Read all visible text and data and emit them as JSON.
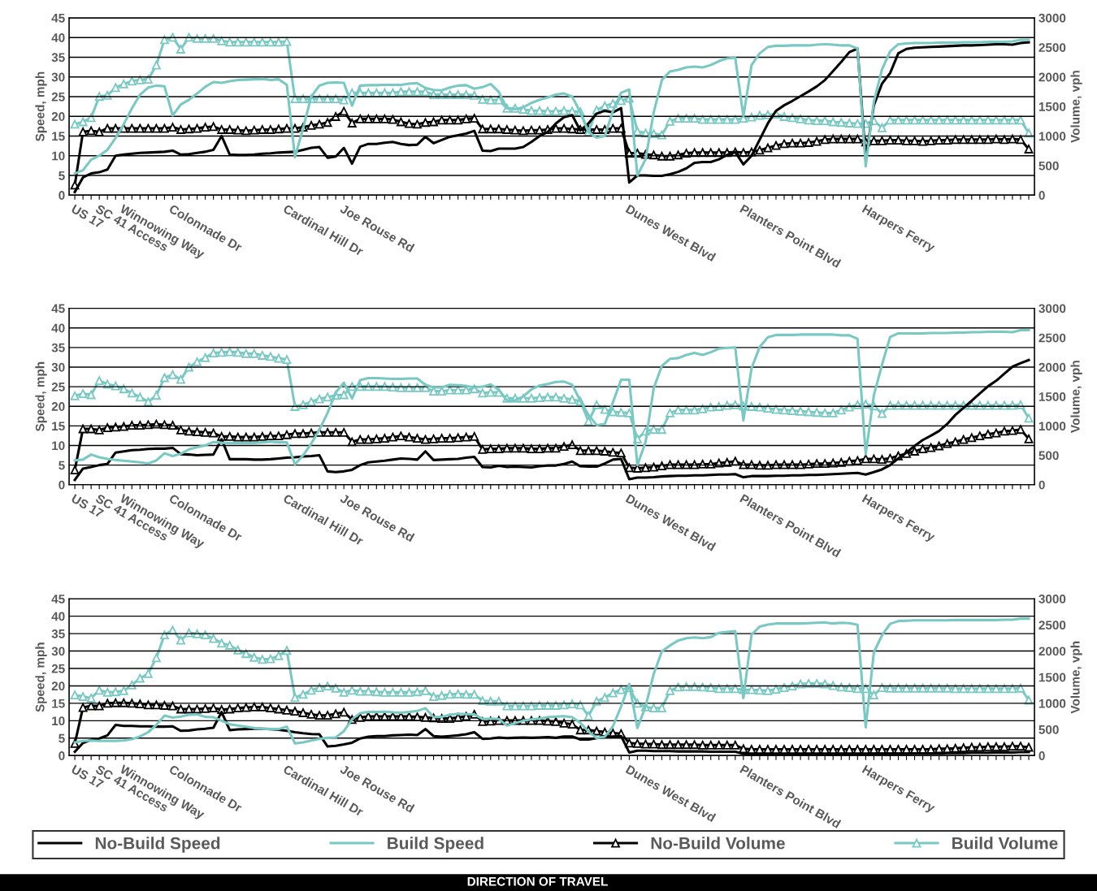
{
  "chart_data": [
    {
      "type": "line",
      "ylabel": "Speed, mph",
      "y2label": "Volume, vph",
      "ylim": [
        0,
        45
      ],
      "yticks": [
        0,
        5,
        10,
        15,
        20,
        25,
        30,
        35,
        40,
        45
      ],
      "y2lim": [
        0,
        3000
      ],
      "y2ticks": [
        0,
        500,
        1000,
        1500,
        2000,
        2500,
        3000
      ],
      "grid": "y",
      "categories": [
        "US 17",
        null,
        null,
        "SC 41 Access",
        null,
        null,
        "Winnowing Way",
        null,
        null,
        null,
        null,
        null,
        "Colonnade Dr",
        null,
        null,
        null,
        null,
        null,
        null,
        null,
        null,
        null,
        null,
        null,
        null,
        null,
        "Cardinal Hill Dr",
        null,
        null,
        null,
        null,
        null,
        null,
        "Joe Rouse Rd",
        null,
        null,
        null,
        null,
        null,
        null,
        null,
        null,
        null,
        null,
        null,
        null,
        null,
        null,
        null,
        null,
        null,
        null,
        null,
        null,
        null,
        null,
        null,
        null,
        null,
        null,
        null,
        null,
        null,
        null,
        null,
        null,
        null,
        null,
        "Dunes West Blvd",
        null,
        null,
        null,
        null,
        null,
        null,
        null,
        null,
        null,
        null,
        null,
        null,
        null,
        "Planters Point Blvd",
        null,
        null,
        null,
        null,
        null,
        null,
        null,
        null,
        null,
        null,
        null,
        null,
        null,
        null,
        "Harpers Ferry",
        null,
        null,
        null,
        null,
        null,
        null,
        null,
        null,
        null,
        null,
        null,
        null,
        null,
        null,
        null,
        null,
        null,
        null,
        null,
        null
      ],
      "series": [
        {
          "color": "#000000",
          "marker": "none",
          "values": [
            0.8,
            4.5,
            5.5,
            5.8,
            6.5,
            10,
            10.3,
            10.5,
            10.7,
            10.8,
            10.9,
            11,
            11.3,
            10.3,
            10.4,
            10.7,
            11,
            11.5,
            15,
            10.3,
            10.2,
            10.2,
            10.3,
            10.5,
            10.6,
            10.8,
            10.9,
            11,
            11.5,
            12,
            12.2,
            9.5,
            9.8,
            12,
            8,
            12.3,
            13,
            13,
            13.3,
            13.5,
            13,
            12.7,
            12.8,
            14.8,
            13.2,
            14,
            14.8,
            15.2,
            15.6,
            16.3,
            11.3,
            11.2,
            11.8,
            11.8,
            11.8,
            12.2,
            13.5,
            15,
            16,
            18.2,
            19.8,
            20.3,
            16.4,
            18.2,
            20.7,
            21.4,
            21,
            22.1,
            3.2,
            5,
            5,
            4.9,
            4.9,
            5.3,
            5.9,
            6.8,
            8.2,
            8.4,
            8.4,
            9.1,
            10.2,
            10.9,
            7.8,
            10,
            14.1,
            18.2,
            21.4,
            22.8,
            23.9,
            25.1,
            26.3,
            27.6,
            29.2,
            31.5,
            33.8,
            36.3,
            37.2,
            9.1,
            22.8,
            28.3,
            31,
            36,
            37.1,
            37.4,
            37.5,
            37.6,
            37.7,
            37.8,
            37.9,
            38,
            38,
            38.1,
            38.2,
            38.3,
            38.3,
            38.2,
            38.6,
            38.8
          ]
        },
        {
          "color": "#78c8c3",
          "marker": "none",
          "values": [
            5.5,
            6.3,
            9,
            10,
            11.5,
            14.5,
            18,
            22,
            25.5,
            27.3,
            27.8,
            27.6,
            20.2,
            23,
            24.2,
            25.8,
            27.5,
            28.7,
            28.5,
            28.9,
            29.2,
            29.3,
            29.4,
            29.5,
            29.2,
            29.4,
            28,
            9.6,
            17,
            25,
            27.8,
            28.5,
            28.6,
            28.5,
            22.7,
            27.8,
            27.9,
            27.9,
            28,
            28,
            28,
            28.3,
            28.4,
            27.2,
            26.7,
            26.6,
            27.3,
            27.8,
            27.9,
            27,
            27.4,
            28.2,
            26.2,
            22,
            21.8,
            22.3,
            23.4,
            24.2,
            24.8,
            25.5,
            25.8,
            25,
            21,
            16,
            14.6,
            15,
            21.4,
            26,
            26.8,
            5,
            9.1,
            21,
            29.2,
            31.4,
            31.8,
            32.4,
            32.6,
            32.4,
            33,
            34,
            34.7,
            34.9,
            20,
            33,
            36,
            37.6,
            37.9,
            37.9,
            38,
            38,
            38,
            38.2,
            38.3,
            38.2,
            38,
            38,
            37.2,
            7.3,
            23.7,
            31.9,
            36.5,
            38.3,
            38.5,
            38.6,
            38.6,
            38.6,
            38.7,
            38.7,
            38.7,
            38.8,
            38.8,
            38.8,
            38.9,
            38.9,
            38.9,
            39,
            39.4,
            39.4
          ]
        },
        {
          "color": "#000000",
          "marker": "triangle",
          "axis": "y2",
          "values": [
            170,
            1070,
            1090,
            1070,
            1130,
            1130,
            1130,
            1130,
            1130,
            1130,
            1130,
            1130,
            1150,
            1110,
            1120,
            1130,
            1150,
            1160,
            1110,
            1110,
            1100,
            1090,
            1100,
            1110,
            1110,
            1120,
            1130,
            1130,
            1150,
            1180,
            1200,
            1230,
            1330,
            1420,
            1220,
            1290,
            1290,
            1290,
            1290,
            1280,
            1240,
            1210,
            1200,
            1230,
            1240,
            1270,
            1270,
            1270,
            1290,
            1300,
            1120,
            1120,
            1120,
            1110,
            1100,
            1090,
            1100,
            1100,
            1110,
            1130,
            1130,
            1120,
            1110,
            1110,
            1110,
            1110,
            1130,
            1130,
            710,
            710,
            690,
            680,
            660,
            660,
            680,
            710,
            720,
            720,
            720,
            720,
            720,
            730,
            720,
            730,
            760,
            800,
            840,
            870,
            880,
            880,
            890,
            910,
            940,
            950,
            950,
            950,
            950,
            900,
            920,
            920,
            930,
            930,
            920,
            920,
            910,
            920,
            930,
            930,
            940,
            940,
            940,
            940,
            940,
            950,
            940,
            950,
            940,
            780
          ]
        },
        {
          "color": "#78c8c3",
          "marker": "triangle",
          "axis": "y2",
          "values": [
            1200,
            1240,
            1310,
            1670,
            1690,
            1820,
            1880,
            1930,
            1950,
            1960,
            2200,
            2630,
            2670,
            2470,
            2670,
            2650,
            2650,
            2650,
            2610,
            2590,
            2590,
            2590,
            2590,
            2590,
            2590,
            2590,
            2600,
            1630,
            1630,
            1630,
            1630,
            1630,
            1630,
            1610,
            1730,
            1730,
            1730,
            1730,
            1730,
            1730,
            1750,
            1750,
            1750,
            1750,
            1700,
            1700,
            1700,
            1700,
            1700,
            1690,
            1620,
            1610,
            1610,
            1470,
            1470,
            1450,
            1430,
            1430,
            1420,
            1420,
            1430,
            1420,
            1410,
            1070,
            1440,
            1510,
            1550,
            1600,
            1640,
            1080,
            1050,
            1040,
            1020,
            1250,
            1300,
            1300,
            1300,
            1280,
            1280,
            1280,
            1280,
            1280,
            1300,
            1320,
            1350,
            1360,
            1370,
            1330,
            1310,
            1290,
            1270,
            1260,
            1260,
            1240,
            1230,
            1220,
            1210,
            1210,
            1260,
            1140,
            1270,
            1270,
            1270,
            1270,
            1270,
            1270,
            1270,
            1270,
            1270,
            1270,
            1270,
            1270,
            1270,
            1270,
            1270,
            1270,
            1270,
            1050
          ]
        }
      ]
    },
    {
      "type": "line",
      "ylabel": "Speed, mph",
      "y2label": "Volume, vph",
      "ylim": [
        0,
        45
      ],
      "yticks": [
        0,
        5,
        10,
        15,
        20,
        25,
        30,
        35,
        40,
        45
      ],
      "y2lim": [
        0,
        3000
      ],
      "y2ticks": [
        0,
        500,
        1000,
        1500,
        2000,
        2500,
        3000
      ],
      "grid": "y",
      "categories": [
        "US 17",
        null,
        null,
        "SC 41 Access",
        null,
        null,
        "Winnowing Way",
        null,
        null,
        null,
        null,
        null,
        "Colonnade Dr",
        null,
        null,
        null,
        null,
        null,
        null,
        null,
        null,
        null,
        null,
        null,
        null,
        null,
        "Cardinal Hill Dr",
        null,
        null,
        null,
        null,
        null,
        null,
        "Joe Rouse Rd",
        null,
        null,
        null,
        null,
        null,
        null,
        null,
        null,
        null,
        null,
        null,
        null,
        null,
        null,
        null,
        null,
        null,
        null,
        null,
        null,
        null,
        null,
        null,
        null,
        null,
        null,
        null,
        null,
        null,
        null,
        null,
        null,
        null,
        null,
        "Dunes West Blvd",
        null,
        null,
        null,
        null,
        null,
        null,
        null,
        null,
        null,
        null,
        null,
        null,
        null,
        "Planters Point Blvd",
        null,
        null,
        null,
        null,
        null,
        null,
        null,
        null,
        null,
        null,
        null,
        null,
        null,
        null,
        "Harpers Ferry",
        null,
        null,
        null,
        null,
        null,
        null,
        null,
        null,
        null,
        null,
        null,
        null,
        null,
        null,
        null,
        null,
        null,
        null,
        null,
        null
      ],
      "series": [
        {
          "color": "#000000",
          "marker": "none",
          "values": [
            1.2,
            4.1,
            4.5,
            5,
            5.3,
            8.2,
            8.5,
            8.8,
            8.9,
            9.1,
            9.2,
            9.2,
            9.4,
            7.8,
            7.7,
            7.5,
            7.6,
            7.7,
            11.6,
            6.5,
            6.5,
            6.5,
            6.4,
            6.4,
            6.5,
            6.7,
            6.9,
            7,
            7.2,
            7.3,
            7.5,
            3.4,
            3.2,
            3.4,
            3.8,
            5,
            5.7,
            5.9,
            6.1,
            6.4,
            6.7,
            6.6,
            6.4,
            8.5,
            6.3,
            6.4,
            6.5,
            6.6,
            6.9,
            7.1,
            4.5,
            4.4,
            4.8,
            4.5,
            4.6,
            4.5,
            4.4,
            4.7,
            4.9,
            4.9,
            5.3,
            5.9,
            4.7,
            4.6,
            4.6,
            5.4,
            6.4,
            6.6,
            1.4,
            1.8,
            1.8,
            1.9,
            2.1,
            2.2,
            2.3,
            2.3,
            2.4,
            2.4,
            2.5,
            2.6,
            2.6,
            2.7,
            1.9,
            2.2,
            2.2,
            2.2,
            2.3,
            2.3,
            2.4,
            2.4,
            2.5,
            2.5,
            2.6,
            2.7,
            2.8,
            2.9,
            3,
            2.6,
            3.2,
            3.9,
            5,
            6.7,
            8.2,
            9.9,
            11.4,
            12.5,
            13.7,
            15.5,
            17.8,
            19.6,
            21.4,
            23.3,
            25.1,
            26.5,
            28.3,
            30.1,
            31,
            31.8
          ]
        },
        {
          "color": "#78c8c3",
          "marker": "none",
          "values": [
            6.2,
            6.4,
            7.7,
            7,
            6.6,
            6.3,
            6.1,
            5.9,
            5.7,
            5.4,
            6.2,
            8,
            7.3,
            7.9,
            9,
            9.6,
            10,
            10.9,
            10.7,
            10.6,
            10.6,
            10.6,
            10.6,
            10.8,
            11,
            10.8,
            10.8,
            5.2,
            7.5,
            10.5,
            14,
            18.3,
            23.5,
            26,
            22,
            26.7,
            27.2,
            27.2,
            27.1,
            27,
            27,
            27.1,
            27.1,
            25.5,
            24.8,
            24.8,
            25.5,
            25.4,
            25.2,
            24.8,
            25,
            25.6,
            24.2,
            21.5,
            21.5,
            22.5,
            24.3,
            25.3,
            25.7,
            26.2,
            26.3,
            25.5,
            21.4,
            17.8,
            15.2,
            15.5,
            21,
            26.8,
            26.8,
            5,
            10.9,
            24.6,
            30.3,
            32.1,
            32.3,
            33.1,
            33.6,
            33.1,
            33.8,
            34.7,
            34.9,
            35,
            16.4,
            29.7,
            35.1,
            37.6,
            38.2,
            38.2,
            38.2,
            38.3,
            38.3,
            38.3,
            38.3,
            38.3,
            38.1,
            38.1,
            37.2,
            7.8,
            22.8,
            30.6,
            37.7,
            38.6,
            38.6,
            38.6,
            38.6,
            38.7,
            38.7,
            38.7,
            38.8,
            38.8,
            38.9,
            38.9,
            39,
            39,
            39,
            38.9,
            39.4,
            39.4
          ]
        },
        {
          "color": "#000000",
          "marker": "triangle",
          "axis": "y2",
          "values": [
            250,
            950,
            950,
            930,
            970,
            980,
            990,
            1010,
            1010,
            1020,
            1030,
            1020,
            1010,
            930,
            910,
            900,
            890,
            880,
            820,
            820,
            810,
            810,
            810,
            820,
            830,
            830,
            850,
            870,
            870,
            880,
            890,
            890,
            890,
            890,
            730,
            770,
            770,
            780,
            790,
            810,
            830,
            810,
            790,
            770,
            780,
            790,
            790,
            800,
            810,
            820,
            600,
            610,
            610,
            620,
            620,
            620,
            610,
            610,
            620,
            620,
            650,
            680,
            580,
            580,
            580,
            570,
            550,
            540,
            290,
            280,
            290,
            300,
            320,
            340,
            340,
            340,
            340,
            350,
            350,
            370,
            380,
            400,
            340,
            340,
            330,
            330,
            340,
            340,
            340,
            340,
            350,
            360,
            360,
            370,
            380,
            400,
            410,
            440,
            440,
            430,
            450,
            490,
            530,
            570,
            610,
            630,
            660,
            700,
            730,
            770,
            800,
            830,
            860,
            880,
            910,
            920,
            940,
            780
          ]
        },
        {
          "color": "#78c8c3",
          "marker": "triangle",
          "axis": "y2",
          "values": [
            1510,
            1550,
            1530,
            1770,
            1710,
            1680,
            1630,
            1560,
            1490,
            1410,
            1520,
            1820,
            1870,
            1790,
            2000,
            2090,
            2160,
            2240,
            2250,
            2260,
            2250,
            2230,
            2230,
            2200,
            2180,
            2150,
            2130,
            1330,
            1360,
            1410,
            1460,
            1490,
            1520,
            1530,
            1670,
            1670,
            1670,
            1670,
            1670,
            1660,
            1650,
            1650,
            1650,
            1650,
            1590,
            1590,
            1610,
            1610,
            1610,
            1630,
            1560,
            1570,
            1570,
            1470,
            1470,
            1470,
            1470,
            1480,
            1490,
            1490,
            1470,
            1450,
            1420,
            1080,
            1360,
            1280,
            1240,
            1230,
            1220,
            780,
            910,
            940,
            940,
            1220,
            1270,
            1270,
            1270,
            1290,
            1320,
            1330,
            1350,
            1360,
            1340,
            1330,
            1320,
            1300,
            1280,
            1270,
            1260,
            1250,
            1240,
            1230,
            1220,
            1220,
            1270,
            1320,
            1360,
            1370,
            1340,
            1210,
            1350,
            1350,
            1350,
            1350,
            1350,
            1350,
            1350,
            1350,
            1350,
            1350,
            1350,
            1350,
            1350,
            1350,
            1350,
            1350,
            1360,
            1130
          ]
        }
      ]
    },
    {
      "type": "line",
      "ylabel": "Speed, mph",
      "y2label": "Volume, vph",
      "ylim": [
        0,
        45
      ],
      "yticks": [
        0,
        5,
        10,
        15,
        20,
        25,
        30,
        35,
        40,
        45
      ],
      "y2lim": [
        0,
        3000
      ],
      "y2ticks": [
        0,
        500,
        1000,
        1500,
        2000,
        2500,
        3000
      ],
      "grid": "y",
      "legend": "bottom",
      "annotations": [
        "DIRECTION OF TRAVEL"
      ],
      "categories": [
        "US 17",
        null,
        null,
        "SC 41 Access",
        null,
        null,
        "Winnowing Way",
        null,
        null,
        null,
        null,
        null,
        "Colonnade Dr",
        null,
        null,
        null,
        null,
        null,
        null,
        null,
        null,
        null,
        null,
        null,
        null,
        null,
        "Cardinal Hill Dr",
        null,
        null,
        null,
        null,
        null,
        null,
        "Joe Rouse Rd",
        null,
        null,
        null,
        null,
        null,
        null,
        null,
        null,
        null,
        null,
        null,
        null,
        null,
        null,
        null,
        null,
        null,
        null,
        null,
        null,
        null,
        null,
        null,
        null,
        null,
        null,
        null,
        null,
        null,
        null,
        null,
        null,
        null,
        null,
        "Dunes West Blvd",
        null,
        null,
        null,
        null,
        null,
        null,
        null,
        null,
        null,
        null,
        null,
        null,
        null,
        "Planters Point Blvd",
        null,
        null,
        null,
        null,
        null,
        null,
        null,
        null,
        null,
        null,
        null,
        null,
        null,
        null,
        "Harpers Ferry",
        null,
        null,
        null,
        null,
        null,
        null,
        null,
        null,
        null,
        null,
        null,
        null,
        null,
        null,
        null,
        null,
        null,
        null,
        null,
        null
      ],
      "series": [
        {
          "name": "No-Build Speed",
          "color": "#000000",
          "marker": "none",
          "values": [
            1.1,
            3.6,
            4.5,
            4.9,
            5.8,
            8.8,
            8.5,
            8.5,
            8.4,
            8.4,
            8.3,
            8.3,
            8.4,
            7.1,
            7.2,
            7.5,
            7.7,
            8,
            12.5,
            7.3,
            7.5,
            7.6,
            7.7,
            7.7,
            7.6,
            7.4,
            7.1,
            6.7,
            6.4,
            6.2,
            6.1,
            2.6,
            2.8,
            3.2,
            3.7,
            4.9,
            5.4,
            5.6,
            5.6,
            5.8,
            5.9,
            6,
            5.9,
            7.6,
            5.6,
            5.4,
            5.6,
            5.8,
            6.1,
            6.7,
            4.8,
            4.9,
            5.2,
            5,
            5.1,
            5.2,
            5.1,
            5.2,
            5.3,
            5.1,
            5.5,
            5.5,
            4.6,
            4.6,
            5,
            5.3,
            5.5,
            5.6,
            0.9,
            1.4,
            1.4,
            1.3,
            1.3,
            1.3,
            1.2,
            1.2,
            1.2,
            1.2,
            1.1,
            1.1,
            1.1,
            1.1,
            0.5,
            0.4,
            0.4,
            0.4,
            0.4,
            0.4,
            0.4,
            0.4,
            0.4,
            0.4,
            0.4,
            0.4,
            0.4,
            0.4,
            0.4,
            0.4,
            0.5,
            0.5,
            0.5,
            0.5,
            0.5,
            0.6,
            0.6,
            0.6,
            0.6,
            0.7,
            0.7,
            0.7,
            0.8,
            0.8,
            0.8,
            0.9,
            0.9,
            0.9,
            1,
            1
          ]
        },
        {
          "name": "Build Speed",
          "color": "#78c8c3",
          "marker": "none",
          "values": [
            3.8,
            4.2,
            4.3,
            4.2,
            4.2,
            4.2,
            4.3,
            4.7,
            5.5,
            6.7,
            8.8,
            11.5,
            10.9,
            11.2,
            11.7,
            11.8,
            11.1,
            11,
            10,
            9,
            8.6,
            8.3,
            7.9,
            7.7,
            7.6,
            7.6,
            8.3,
            3.5,
            3.8,
            4.3,
            4.8,
            5.1,
            5.2,
            7,
            10.4,
            12.2,
            12.5,
            12.5,
            12.6,
            12.4,
            12.3,
            12.5,
            12.8,
            13.6,
            11,
            11.1,
            11.7,
            12,
            11.9,
            11.8,
            10.5,
            10.6,
            10.5,
            8.6,
            9.3,
            10,
            10.4,
            10.6,
            11,
            11.2,
            11.3,
            11,
            9.4,
            6.9,
            5,
            5.4,
            8.4,
            14.1,
            20.5,
            7.9,
            14.1,
            23.4,
            29.9,
            31.6,
            33,
            33.7,
            33.9,
            33.7,
            34,
            35.2,
            35.5,
            35.7,
            16.5,
            34.7,
            37,
            37.6,
            37.9,
            37.9,
            37.9,
            37.9,
            38,
            38.1,
            38.2,
            37.9,
            38.1,
            38,
            37.5,
            8.1,
            29.6,
            34.5,
            37.8,
            38.6,
            38.7,
            38.8,
            38.8,
            38.8,
            38.8,
            38.8,
            38.9,
            38.9,
            38.9,
            38.9,
            38.9,
            38.9,
            39,
            39,
            39.3,
            39.3
          ]
        },
        {
          "name": "No-Build Volume",
          "color": "#000000",
          "marker": "triangle",
          "axis": "y2",
          "values": [
            230,
            920,
            950,
            950,
            1000,
            1010,
            1010,
            1000,
            990,
            970,
            970,
            960,
            950,
            890,
            890,
            890,
            900,
            910,
            880,
            890,
            910,
            920,
            930,
            930,
            910,
            890,
            870,
            850,
            820,
            790,
            770,
            770,
            800,
            830,
            690,
            730,
            750,
            750,
            750,
            750,
            750,
            750,
            740,
            730,
            720,
            710,
            710,
            730,
            750,
            790,
            650,
            660,
            670,
            670,
            670,
            670,
            670,
            670,
            660,
            650,
            620,
            600,
            490,
            490,
            470,
            450,
            430,
            420,
            240,
            230,
            220,
            220,
            210,
            210,
            210,
            210,
            210,
            200,
            200,
            200,
            200,
            200,
            130,
            120,
            120,
            120,
            120,
            120,
            120,
            120,
            120,
            120,
            120,
            120,
            120,
            120,
            120,
            120,
            120,
            120,
            120,
            120,
            120,
            120,
            120,
            120,
            130,
            130,
            140,
            150,
            160,
            160,
            170,
            170,
            170,
            180,
            180,
            160
          ]
        },
        {
          "name": "Build Volume",
          "color": "#78c8c3",
          "marker": "triangle",
          "axis": "y2",
          "values": [
            1160,
            1130,
            1100,
            1250,
            1210,
            1220,
            1240,
            1350,
            1480,
            1570,
            1870,
            2310,
            2400,
            2210,
            2350,
            2330,
            2310,
            2240,
            2150,
            2110,
            2020,
            1950,
            1880,
            1840,
            1850,
            1910,
            2010,
            1110,
            1170,
            1250,
            1300,
            1330,
            1290,
            1210,
            1250,
            1230,
            1230,
            1220,
            1210,
            1210,
            1210,
            1210,
            1220,
            1240,
            1130,
            1150,
            1170,
            1180,
            1170,
            1170,
            1050,
            1040,
            1040,
            950,
            950,
            950,
            950,
            960,
            960,
            960,
            970,
            990,
            970,
            760,
            1040,
            1110,
            1200,
            1260,
            1300,
            1000,
            930,
            910,
            910,
            1240,
            1310,
            1320,
            1320,
            1310,
            1300,
            1280,
            1280,
            1280,
            1260,
            1260,
            1250,
            1240,
            1270,
            1300,
            1330,
            1370,
            1380,
            1380,
            1370,
            1340,
            1310,
            1300,
            1280,
            1280,
            1160,
            1300,
            1290,
            1290,
            1290,
            1290,
            1290,
            1290,
            1290,
            1290,
            1280,
            1280,
            1280,
            1280,
            1280,
            1280,
            1280,
            1280,
            1290,
            1060
          ]
        }
      ]
    }
  ]
}
